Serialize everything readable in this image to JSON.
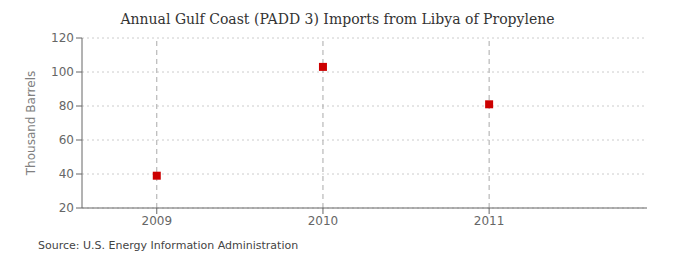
{
  "chart_data": {
    "type": "scatter",
    "title": "Annual Gulf Coast (PADD 3) Imports from Libya of Propylene",
    "ylabel": "Thousand Barrels",
    "annotation": "Source: U.S. Energy Information Administration",
    "x": [
      2009,
      2010,
      2011
    ],
    "values": [
      39,
      103,
      81
    ],
    "color": "#cc0000",
    "marker": "square",
    "xlim": [
      2008.55,
      2011.95
    ],
    "xticks": [
      2009,
      2010,
      2011
    ],
    "ylim": [
      20,
      120
    ],
    "yticks": [
      20,
      40,
      60,
      80,
      100,
      120
    ],
    "grid": true
  }
}
